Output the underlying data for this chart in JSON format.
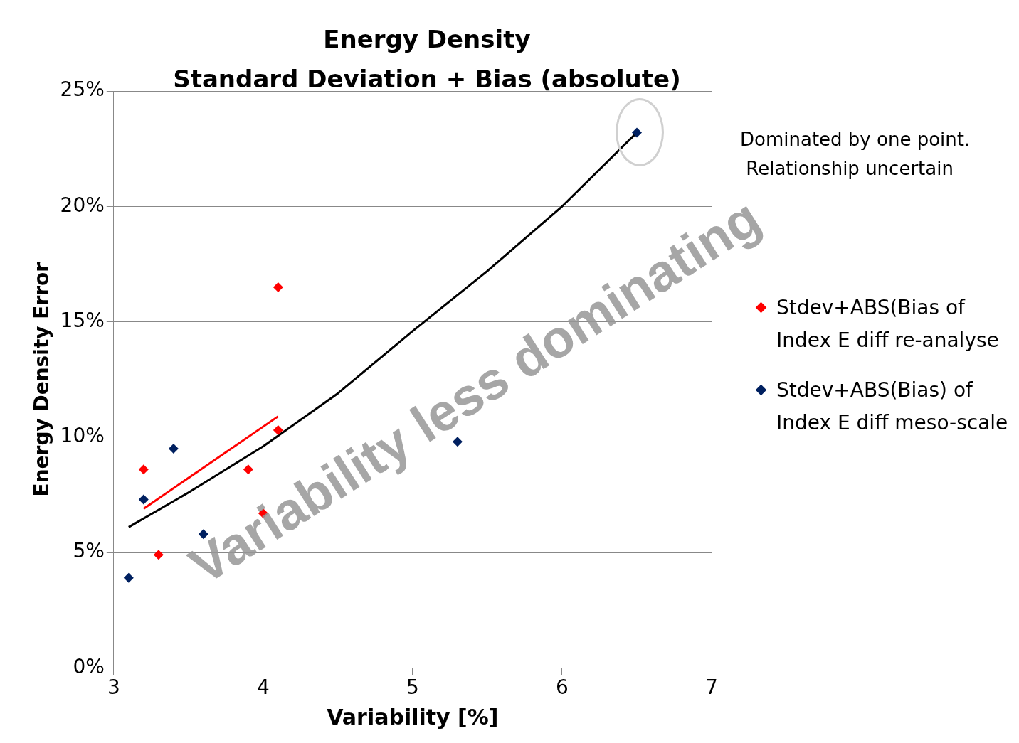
{
  "chart_data": {
    "type": "scatter",
    "title": "Energy Density",
    "subtitle": "Standard Deviation + Bias (absolute)",
    "xlabel": "Variability [%]",
    "ylabel": "Energy Density Error",
    "annotations": [
      "Dominated by one point.\n Relationship uncertain",
      "Variability less dominating"
    ],
    "xlim": [
      3,
      7
    ],
    "xticks": [
      3,
      4,
      5,
      6,
      7
    ],
    "ylim": [
      0,
      25
    ],
    "yticks": [
      {
        "value": 0,
        "label": "0%"
      },
      {
        "value": 5,
        "label": "5%"
      },
      {
        "value": 10,
        "label": "10%"
      },
      {
        "value": 15,
        "label": "15%"
      },
      {
        "value": 20,
        "label": "20%"
      },
      {
        "value": 25,
        "label": "25%"
      }
    ],
    "grid": "y",
    "legend": "right",
    "marker": "diamond",
    "line_style": "solid",
    "series": [
      {
        "name": "Stdev+ABS(Bias of Index E diff re-analyse",
        "color": "#ff0000",
        "x": [
          3.2,
          3.3,
          3.9,
          4.0,
          4.1,
          4.1
        ],
        "values": [
          8.6,
          4.9,
          8.6,
          6.7,
          16.5,
          10.3
        ]
      },
      {
        "name": "Stdev+ABS(Bias) of Index E diff meso-scale",
        "color": "#002060",
        "x": [
          3.1,
          3.2,
          3.4,
          3.6,
          5.3,
          6.5
        ],
        "values": [
          3.9,
          7.3,
          9.5,
          5.8,
          9.8,
          23.2
        ]
      },
      {
        "type": "line",
        "marker": "none",
        "color": "#ff0000",
        "x": [
          3.2,
          4.1
        ],
        "values": [
          6.9,
          10.9
        ]
      },
      {
        "type": "line",
        "marker": "none",
        "color": "#000000",
        "x": [
          3.1,
          3.5,
          4.0,
          4.5,
          5.0,
          5.5,
          6.0,
          6.5
        ],
        "values": [
          6.1,
          7.6,
          9.6,
          11.9,
          14.6,
          17.2,
          20.0,
          23.2
        ]
      }
    ]
  }
}
